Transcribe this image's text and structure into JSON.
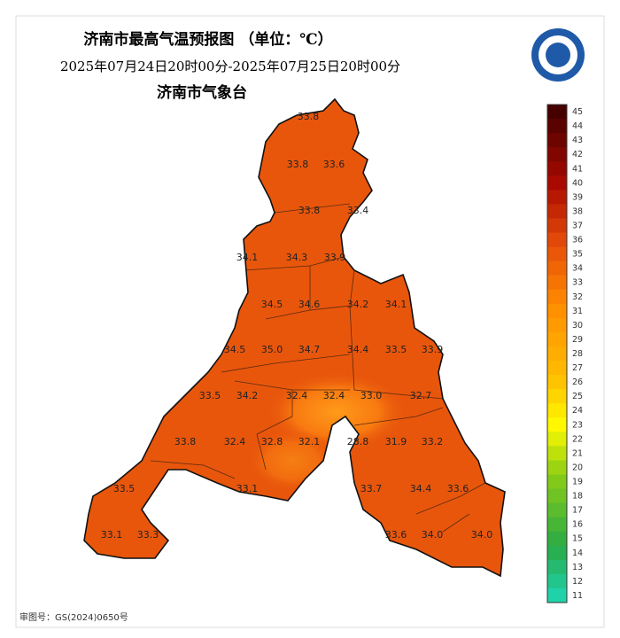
{
  "header": {
    "title": "济南市最高气温预报图 （单位：℃）",
    "time_range": "2025年07月24日20时00分-2025年07月25日20时00分",
    "issuer": "济南市气象台"
  },
  "legend": {
    "ticks": [
      45,
      44,
      43,
      42,
      41,
      40,
      39,
      38,
      37,
      36,
      35,
      34,
      33,
      32,
      31,
      30,
      29,
      28,
      27,
      26,
      25,
      24,
      23,
      22,
      21,
      20,
      19,
      18,
      17,
      16,
      15,
      14,
      13,
      12,
      11
    ]
  },
  "stations": [
    "33.8",
    "33.8",
    "33.6",
    "33.8",
    "33.4",
    "34.1",
    "34.3",
    "33.9",
    "34.5",
    "34.6",
    "34.2",
    "34.1",
    "34.5",
    "35.0",
    "34.7",
    "34.4",
    "33.5",
    "33.9",
    "33.5",
    "34.2",
    "32.4",
    "32.4",
    "33.0",
    "32.7",
    "33.8",
    "32.4",
    "32.8",
    "32.1",
    "28.8",
    "31.9",
    "33.2",
    "33.5",
    "33.1",
    "33.7",
    "34.4",
    "33.6",
    "33.1",
    "33.3",
    "33.6",
    "34.0",
    "34.0"
  ],
  "footer": {
    "approval": "审图号：GS(2024)0650号"
  }
}
